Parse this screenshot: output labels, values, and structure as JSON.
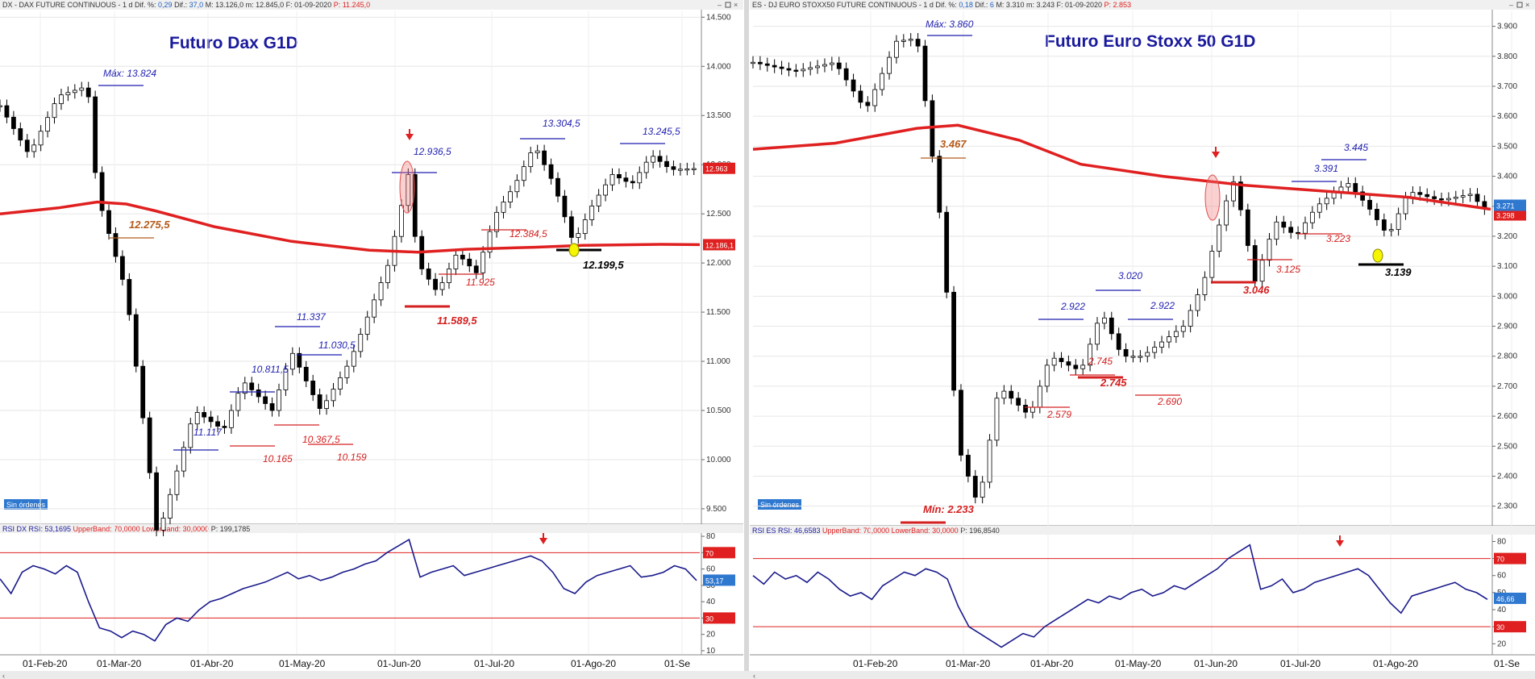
{
  "left_panel": {
    "header": {
      "symbol": "DX - DAX FUTURE CONTINUOUS",
      "stats": " - 1 d Dif. %: ",
      "dif_pct": "0,29",
      "dif_label": " Dif.: ",
      "dif": "37,0",
      "maxmin": " M: 13.126,0 m: 12.845,0 F: 01-09-2020",
      "p_label": " P: 11.245,0"
    },
    "title": "Futuro Dax G1D",
    "rsi_header": {
      "name": "RSI DX RSI: 53,1695",
      "upper": " UpperBand: 70,0000",
      "lower": " LowerBand: 30,0000",
      "p": " P: 199,1785"
    },
    "sin_ordenes": "Sin órdenes",
    "price_tag": "12.963",
    "ma_tag": "12.186,1",
    "rsi_tag": "53,17",
    "band_upper_tag": "70",
    "band_lower_tag": "30",
    "date_labels": [
      "01-Feb-20",
      "01-Mar-20",
      "01-Abr-20",
      "01-May-20",
      "01-Jun-20",
      "01-Jul-20",
      "01-Ago-20",
      "01-Se"
    ]
  },
  "right_panel": {
    "header": {
      "symbol": "ES - DJ EURO STOXX50 FUTURE CONTINUOUS",
      "stats": " - 1 d Dif. %: ",
      "dif_pct": "0,18",
      "dif_label": " Dif.: ",
      "dif": "6",
      "maxmin": " M: 3.310 m: 3.243 F: 01-09-2020",
      "p_label": " P: 2.853"
    },
    "title": "Futuro Euro Stoxx 50 G1D",
    "rsi_header": {
      "name": "RSI ES RSI: 46,6583",
      "upper": " UpperBand: 70,0000",
      "lower": " LowerBand: 30,0000",
      "p": " P: 196,8540"
    },
    "sin_ordenes": "Sin órdenes",
    "price_tag": "3.298",
    "price_tag2": "3.271",
    "rsi_tag": "46,66",
    "band_upper_tag": "70",
    "band_lower_tag": "30",
    "date_labels": [
      "01-Feb-20",
      "01-Mar-20",
      "01-Abr-20",
      "01-May-20",
      "01-Jun-20",
      "01-Jul-20",
      "01-Ago-20",
      "01-Se"
    ]
  },
  "chart_data": [
    {
      "type": "candlestick",
      "title": "Futuro Dax G1D",
      "y_ticks": [
        9500,
        10000,
        10500,
        11000,
        11500,
        12000,
        12500,
        13000,
        13500,
        14000,
        14500
      ],
      "ylim": [
        9360,
        14560
      ],
      "moving_average": [
        [
          0,
          12500
        ],
        [
          60,
          12560
        ],
        [
          100,
          12620
        ],
        [
          130,
          12600
        ],
        [
          160,
          12530
        ],
        [
          220,
          12370
        ],
        [
          300,
          12220
        ],
        [
          380,
          12130
        ],
        [
          430,
          12110
        ],
        [
          480,
          12140
        ],
        [
          550,
          12160
        ],
        [
          600,
          12180
        ],
        [
          680,
          12190
        ],
        [
          720,
          12186
        ]
      ],
      "close_path": [
        [
          0,
          13600
        ],
        [
          30,
          13100
        ],
        [
          60,
          13700
        ],
        [
          90,
          13800
        ],
        [
          100,
          12700
        ],
        [
          130,
          11700
        ],
        [
          150,
          10200
        ],
        [
          162,
          9200
        ],
        [
          200,
          10500
        ],
        [
          230,
          10300
        ],
        [
          250,
          10800
        ],
        [
          280,
          10500
        ],
        [
          300,
          11100
        ],
        [
          330,
          10500
        ],
        [
          360,
          11000
        ],
        [
          380,
          11500
        ],
        [
          400,
          12000
        ],
        [
          420,
          12900
        ],
        [
          430,
          12000
        ],
        [
          450,
          11700
        ],
        [
          470,
          12100
        ],
        [
          490,
          11900
        ],
        [
          510,
          12500
        ],
        [
          530,
          12800
        ],
        [
          550,
          13200
        ],
        [
          570,
          12800
        ],
        [
          590,
          12200
        ],
        [
          610,
          12600
        ],
        [
          630,
          12900
        ],
        [
          650,
          12800
        ],
        [
          670,
          13100
        ],
        [
          690,
          12950
        ],
        [
          720,
          12963
        ]
      ],
      "annotations": [
        {
          "text": "Máx: 13.824",
          "color": "#1f1fb0"
        },
        {
          "text": "12.275,5",
          "color": "#b55a1a"
        },
        {
          "text": "11.117",
          "color": "#1f1fb0"
        },
        {
          "text": "10.811,5",
          "color": "#1f1fb0"
        },
        {
          "text": "11.337",
          "color": "#1f1fb0"
        },
        {
          "text": "11.030,5",
          "color": "#1f1fb0"
        },
        {
          "text": "10.165",
          "color": "#d42020"
        },
        {
          "text": "10.367,5",
          "color": "#d42020"
        },
        {
          "text": "10.159",
          "color": "#d42020"
        },
        {
          "text": "12.936,5",
          "color": "#1f1fb0"
        },
        {
          "text": "11.589,5",
          "color": "#d42020"
        },
        {
          "text": "11.925",
          "color": "#d42020"
        },
        {
          "text": "12.384,5",
          "color": "#d42020"
        },
        {
          "text": "13.304,5",
          "color": "#1f1fb0"
        },
        {
          "text": "13.245,5",
          "color": "#1f1fb0"
        },
        {
          "text": "12.199,5",
          "color": "#000000"
        }
      ],
      "rsi": {
        "y_ticks": [
          10,
          20,
          30,
          40,
          50,
          60,
          70,
          80
        ],
        "ylim": [
          8,
          82
        ],
        "upper": 70,
        "lower": 30,
        "last": 53.17,
        "values": [
          54,
          45,
          58,
          62,
          60,
          57,
          62,
          58,
          40,
          24,
          22,
          18,
          22,
          20,
          16,
          26,
          30,
          28,
          35,
          40,
          42,
          45,
          48,
          50,
          52,
          55,
          58,
          54,
          56,
          53,
          55,
          58,
          60,
          63,
          65,
          70,
          74,
          78,
          55,
          58,
          60,
          62,
          56,
          58,
          60,
          62,
          64,
          66,
          68,
          65,
          58,
          48,
          45,
          52,
          56,
          58,
          60,
          62,
          55,
          56,
          58,
          62,
          60,
          53
        ]
      }
    },
    {
      "type": "candlestick",
      "title": "Futuro Euro Stoxx 50 G1D",
      "y_ticks": [
        2300,
        2400,
        2500,
        2600,
        2700,
        2800,
        2900,
        3000,
        3100,
        3200,
        3300,
        3400,
        3500,
        3600,
        3700,
        3800,
        3900
      ],
      "ylim": [
        2240,
        3950
      ],
      "moving_average": [
        [
          0,
          3490
        ],
        [
          80,
          3510
        ],
        [
          160,
          3560
        ],
        [
          200,
          3570
        ],
        [
          260,
          3520
        ],
        [
          320,
          3440
        ],
        [
          400,
          3400
        ],
        [
          480,
          3370
        ],
        [
          560,
          3350
        ],
        [
          640,
          3330
        ],
        [
          720,
          3290
        ]
      ],
      "close_path": [
        [
          0,
          3780
        ],
        [
          40,
          3750
        ],
        [
          80,
          3780
        ],
        [
          110,
          3620
        ],
        [
          140,
          3850
        ],
        [
          160,
          3860
        ],
        [
          170,
          3600
        ],
        [
          185,
          3200
        ],
        [
          200,
          2500
        ],
        [
          220,
          2300
        ],
        [
          240,
          2700
        ],
        [
          270,
          2600
        ],
        [
          290,
          2800
        ],
        [
          320,
          2750
        ],
        [
          340,
          2950
        ],
        [
          360,
          2800
        ],
        [
          380,
          2800
        ],
        [
          400,
          2850
        ],
        [
          420,
          2900
        ],
        [
          440,
          3050
        ],
        [
          460,
          3300
        ],
        [
          470,
          3390
        ],
        [
          490,
          3050
        ],
        [
          510,
          3250
        ],
        [
          530,
          3200
        ],
        [
          550,
          3300
        ],
        [
          580,
          3380
        ],
        [
          600,
          3300
        ],
        [
          620,
          3200
        ],
        [
          640,
          3350
        ],
        [
          670,
          3320
        ],
        [
          700,
          3340
        ],
        [
          720,
          3271
        ]
      ],
      "annotations": [
        {
          "text": "Máx: 3.860",
          "color": "#1f1fb0"
        },
        {
          "text": "3.467",
          "color": "#b55a1a"
        },
        {
          "text": "3.391",
          "color": "#1f1fb0"
        },
        {
          "text": "3.445",
          "color": "#1f1fb0"
        },
        {
          "text": "3.020",
          "color": "#1f1fb0"
        },
        {
          "text": "2.922",
          "color": "#1f1fb0"
        },
        {
          "text": "2.922",
          "color": "#1f1fb0"
        },
        {
          "text": "2.745",
          "color": "#d42020"
        },
        {
          "text": "2.745",
          "color": "#d42020"
        },
        {
          "text": "2.690",
          "color": "#d42020"
        },
        {
          "text": "2.579",
          "color": "#d42020"
        },
        {
          "text": "3.046",
          "color": "#d42020"
        },
        {
          "text": "3.125",
          "color": "#d42020"
        },
        {
          "text": "3.223",
          "color": "#d42020"
        },
        {
          "text": "3.139",
          "color": "#000000"
        },
        {
          "text": "Mín: 2.233",
          "color": "#d42020"
        }
      ],
      "rsi": {
        "y_ticks": [
          20,
          30,
          40,
          50,
          60,
          70,
          80
        ],
        "ylim": [
          14,
          84
        ],
        "upper": 70,
        "lower": 30,
        "last": 46.66,
        "values": [
          60,
          55,
          62,
          58,
          60,
          56,
          62,
          58,
          52,
          48,
          50,
          46,
          54,
          58,
          62,
          60,
          64,
          62,
          58,
          42,
          30,
          26,
          22,
          18,
          22,
          26,
          24,
          30,
          34,
          38,
          42,
          46,
          44,
          48,
          46,
          50,
          52,
          48,
          50,
          54,
          52,
          56,
          60,
          64,
          70,
          74,
          78,
          52,
          54,
          58,
          50,
          52,
          56,
          58,
          60,
          62,
          64,
          60,
          52,
          44,
          38,
          48,
          50,
          52,
          54,
          56,
          52,
          50,
          46
        ]
      }
    }
  ]
}
